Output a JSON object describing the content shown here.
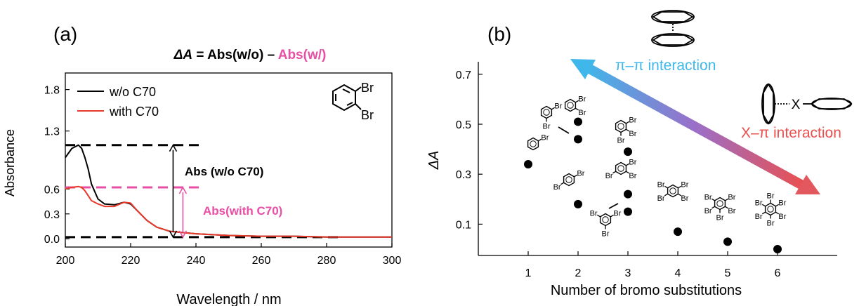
{
  "panel_a_label": "(a)",
  "panel_b_label": "(b)",
  "formula": {
    "delta_a": "ΔA",
    "part1": " = Abs(w/o) – ",
    "part2": "Abs(w/)"
  },
  "inset_substituent": "Br",
  "annotations_a": {
    "abs_without": "Abs (w/o C70)",
    "abs_with": "Abs(with C70)",
    "level_without": 1.13,
    "level_with": 0.62,
    "level_zero": 0.02,
    "arrow_wavelength": 233,
    "arrow2_wavelength": 236,
    "colors": {
      "black": "#000000",
      "pink": "#e84fa5"
    }
  },
  "annotations_b": {
    "pi_label": "π–π interaction",
    "x_label": "X–π interaction",
    "x_atom": "X",
    "colors": {
      "pi": "#3fb7ea",
      "x": "#ea4f4f"
    }
  },
  "chart_data": [
    {
      "type": "line",
      "title": "",
      "xlabel": "Wavelength / nm",
      "ylabel": "Absorbance",
      "xlim": [
        200,
        300
      ],
      "ylim": [
        -0.1,
        2.0
      ],
      "xticks": [
        200,
        220,
        240,
        260,
        280,
        300
      ],
      "yticks": [
        0.0,
        0.3,
        0.6,
        1.3,
        1.8
      ],
      "ytick_labels": [
        "0.0",
        "0.3",
        "0.6",
        "1.3",
        "1.8"
      ],
      "legend_position": "top-left",
      "series": [
        {
          "name": "w/o C70",
          "color": "#000000",
          "x": [
            200,
            202,
            204,
            205,
            206,
            207,
            208,
            210,
            212,
            215,
            218,
            220,
            222,
            225,
            228,
            232,
            240,
            250,
            260,
            270,
            280,
            300
          ],
          "y": [
            0.98,
            1.09,
            1.13,
            1.09,
            0.98,
            0.84,
            0.66,
            0.48,
            0.42,
            0.41,
            0.44,
            0.42,
            0.34,
            0.22,
            0.14,
            0.09,
            0.06,
            0.04,
            0.03,
            0.03,
            0.02,
            0.02
          ]
        },
        {
          "name": "with C70",
          "color": "#e8392b",
          "x": [
            200,
            202,
            204,
            205,
            206,
            207,
            208,
            210,
            212,
            215,
            218,
            220,
            222,
            225,
            228,
            232,
            240,
            250,
            260,
            270,
            280,
            300
          ],
          "y": [
            0.6,
            0.62,
            0.63,
            0.62,
            0.58,
            0.52,
            0.46,
            0.42,
            0.39,
            0.39,
            0.44,
            0.43,
            0.34,
            0.22,
            0.14,
            0.09,
            0.06,
            0.04,
            0.03,
            0.03,
            0.02,
            0.02
          ]
        }
      ]
    },
    {
      "type": "scatter",
      "title": "",
      "xlabel": "Number of bromo substitutions",
      "ylabel": "ΔA",
      "xlim": [
        0,
        7
      ],
      "ylim": [
        0,
        0.8
      ],
      "xticks": [
        1,
        2,
        3,
        4,
        5,
        6
      ],
      "yticks": [
        0.1,
        0.3,
        0.5,
        0.7
      ],
      "points": [
        {
          "x": 1,
          "y": 0.34,
          "substituents": [
            1
          ]
        },
        {
          "x": 2,
          "y": 0.51,
          "substituents": [
            1,
            2
          ]
        },
        {
          "x": 2,
          "y": 0.44,
          "substituents": [
            1,
            3
          ]
        },
        {
          "x": 2,
          "y": 0.18,
          "substituents": [
            1,
            4
          ]
        },
        {
          "x": 3,
          "y": 0.39,
          "substituents": [
            1,
            2,
            3
          ]
        },
        {
          "x": 3,
          "y": 0.22,
          "substituents": [
            1,
            2,
            4
          ]
        },
        {
          "x": 3,
          "y": 0.15,
          "substituents": [
            1,
            3,
            5
          ]
        },
        {
          "x": 4,
          "y": 0.07,
          "substituents": [
            1,
            2,
            4,
            5
          ]
        },
        {
          "x": 5,
          "y": 0.03,
          "substituents": [
            1,
            2,
            3,
            4,
            5
          ]
        },
        {
          "x": 6,
          "y": 0.0,
          "substituents": [
            1,
            2,
            3,
            4,
            5,
            6
          ]
        }
      ]
    }
  ]
}
